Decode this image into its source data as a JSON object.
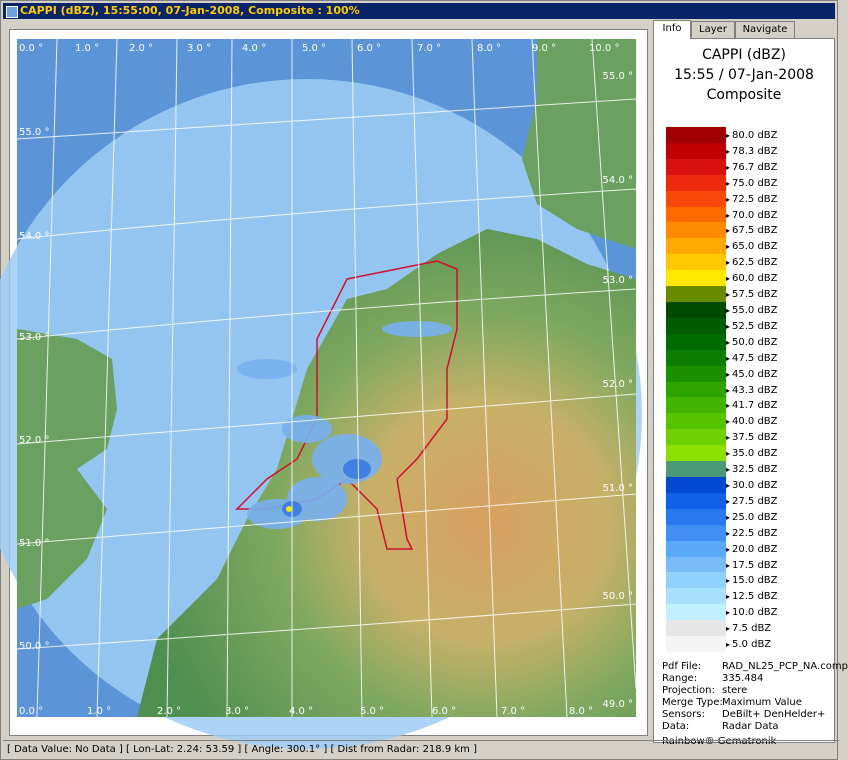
{
  "window": {
    "title": "CAPPI (dBZ), 15:55:00, 07-Jan-2008, Composite : 100%"
  },
  "tabs": [
    {
      "label": "Info"
    },
    {
      "label": "Layer"
    },
    {
      "label": "Navigate"
    }
  ],
  "info": {
    "product": "CAPPI (dBZ)",
    "datetime": "15:55 / 07-Jan-2008",
    "mode": "Composite"
  },
  "legend": [
    {
      "label": "80.0 dBZ",
      "color": "#a00000"
    },
    {
      "label": "78.3 dBZ",
      "color": "#c00000"
    },
    {
      "label": "76.7 dBZ",
      "color": "#d81010"
    },
    {
      "label": "75.0 dBZ",
      "color": "#ee2a0c"
    },
    {
      "label": "72.5 dBZ",
      "color": "#f8480a"
    },
    {
      "label": "70.0 dBZ",
      "color": "#ff6a00"
    },
    {
      "label": "67.5 dBZ",
      "color": "#ff8c00"
    },
    {
      "label": "65.0 dBZ",
      "color": "#ffaa00"
    },
    {
      "label": "62.5 dBZ",
      "color": "#ffc800"
    },
    {
      "label": "60.0 dBZ",
      "color": "#ffe800"
    },
    {
      "label": "57.5 dBZ",
      "color": "#6a8a00"
    },
    {
      "label": "55.0 dBZ",
      "color": "#004a00"
    },
    {
      "label": "52.5 dBZ",
      "color": "#005c00"
    },
    {
      "label": "50.0 dBZ",
      "color": "#006c00"
    },
    {
      "label": "47.5 dBZ",
      "color": "#0a7e00"
    },
    {
      "label": "45.0 dBZ",
      "color": "#1a9000"
    },
    {
      "label": "43.3 dBZ",
      "color": "#2ea400"
    },
    {
      "label": "41.7 dBZ",
      "color": "#40b400"
    },
    {
      "label": "40.0 dBZ",
      "color": "#56c400"
    },
    {
      "label": "37.5 dBZ",
      "color": "#6ed000"
    },
    {
      "label": "35.0 dBZ",
      "color": "#8ce000"
    },
    {
      "label": "32.5 dBZ",
      "color": "#4a9a7a"
    },
    {
      "label": "30.0 dBZ",
      "color": "#0048d0"
    },
    {
      "label": "27.5 dBZ",
      "color": "#1060e8"
    },
    {
      "label": "25.0 dBZ",
      "color": "#2a78f0"
    },
    {
      "label": "22.5 dBZ",
      "color": "#4090f4"
    },
    {
      "label": "20.0 dBZ",
      "color": "#5aa8f8"
    },
    {
      "label": "17.5 dBZ",
      "color": "#78bcfa"
    },
    {
      "label": "15.0 dBZ",
      "color": "#90d0fc"
    },
    {
      "label": "12.5 dBZ",
      "color": "#a8e0fe"
    },
    {
      "label": "10.0 dBZ",
      "color": "#c0f0ff"
    },
    {
      "label": "7.5 dBZ",
      "color": "#e6e6e6"
    },
    {
      "label": "5.0 dBZ",
      "color": "#f4f4f4"
    }
  ],
  "meta": [
    {
      "key": "Pdf File:",
      "value": "RAD_NL25_PCP_NA.comp"
    },
    {
      "key": "Range:",
      "value": "335.484"
    },
    {
      "key": "Projection:",
      "value": "stere"
    },
    {
      "key": "Merge Type:",
      "value": "Maximum Value"
    },
    {
      "key": "Sensors:",
      "value": "DeBilt+ DenHelder+"
    },
    {
      "key": "Data:",
      "value": "Radar Data"
    }
  ],
  "vendor": "Rainbow® Gematronik",
  "map": {
    "lon_labels_top": [
      "0.0 °",
      "1.0 °",
      "2.0 °",
      "3.0 °",
      "4.0 °",
      "5.0 °",
      "6.0 °",
      "7.0 °",
      "8.0 °",
      "9.0 °",
      "10.0 °"
    ],
    "lon_labels_bottom": [
      "0.0 °",
      "1.0 °",
      "2.0 °",
      "3.0 °",
      "4.0 °",
      "5.0 °",
      "6.0 °",
      "7.0 °",
      "8.0 °"
    ],
    "lat_labels_left": [
      "55.0 °",
      "54.0 °",
      "53.0 °",
      "52.0 °",
      "51.0 °",
      "50.0 °"
    ],
    "lat_labels_right": [
      "55.0 °",
      "54.0 °",
      "53.0 °",
      "52.0 °",
      "51.0 °",
      "50.0 °",
      "49.0 °"
    ]
  },
  "status": "[ Data Value: No Data ] [ Lon-Lat: 2.24: 53.59 ] [ Angle: 300.1° ] [ Dist from Radar: 218.9 km ]"
}
